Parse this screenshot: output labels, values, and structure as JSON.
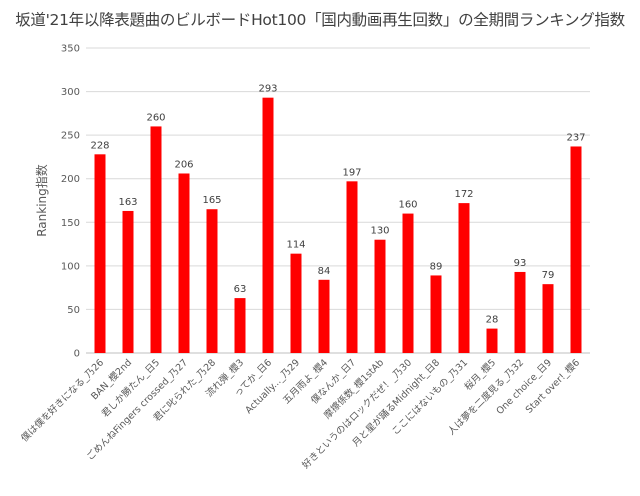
{
  "chart_data": {
    "type": "bar",
    "title": "坂道'21年以降表題曲のビルボードHot100「国内動画再生回数」の全期間ランキング指数",
    "xlabel": "",
    "ylabel": "Ranking指数",
    "ylim": [
      0,
      350
    ],
    "yticks": [
      0,
      50,
      100,
      150,
      200,
      250,
      300,
      350
    ],
    "grid": true,
    "legend": "none",
    "bar_color": "#ff0000",
    "categories": [
      "僕は僕を好きになる_乃26",
      "BAN_櫻2nd",
      "君しか勝たん_日5",
      "ごめんねFingers crossed_乃27",
      "君に叱られた_乃28",
      "流れ弾_櫻3",
      "ってか_日6",
      "Actually..._乃29",
      "五月雨よ_櫻4",
      "僕なんか_日7",
      "摩擦係数_櫻1stAb",
      "好きというのはロックだぜ！_乃30",
      "月と星が踊るMidnight_日8",
      "ここにはないもの_乃31",
      "桜月_櫻5",
      "人は夢を二度見る_乃32",
      "One choice_日9",
      "Start over!_櫻6"
    ],
    "values": [
      228,
      163,
      260,
      206,
      165,
      63,
      293,
      114,
      84,
      197,
      130,
      160,
      89,
      172,
      28,
      93,
      79,
      237
    ]
  }
}
